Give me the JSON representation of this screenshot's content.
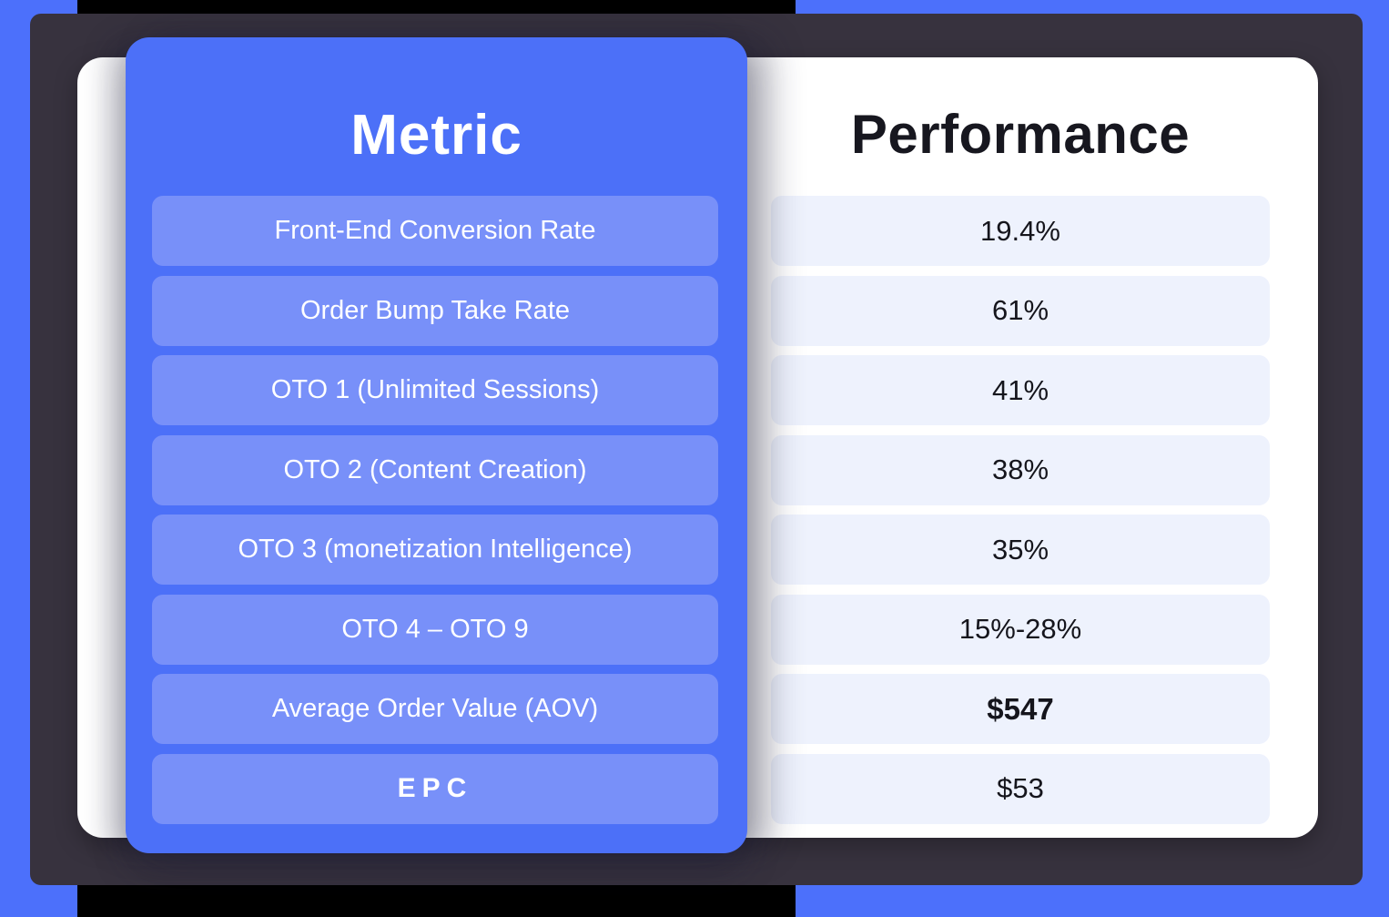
{
  "colors": {
    "background_blue": "#4C70FB",
    "panel_blue": "#4C70F8",
    "pill_blue": "#7890F9",
    "value_row_lavender": "#EEF2FD",
    "frame_charcoal": "#37323E",
    "bar_black": "#000000",
    "heading_dark": "#17171F",
    "text_white": "#FFFFFF"
  },
  "table": {
    "metric_header": "Metric",
    "performance_header": "Performance",
    "rows": [
      {
        "metric": "Front-End Conversion Rate",
        "value": "19.4%"
      },
      {
        "metric": "Order Bump Take Rate",
        "value": "61%"
      },
      {
        "metric": "OTO 1 (Unlimited Sessions)",
        "value": "41%"
      },
      {
        "metric": "OTO 2 (Content Creation)",
        "value": "38%"
      },
      {
        "metric": "OTO 3 (monetization Intelligence)",
        "value": "35%"
      },
      {
        "metric": "OTO 4 – OTO 9",
        "value": "15%-28%"
      },
      {
        "metric": "Average Order Value (AOV)",
        "value": "$547"
      },
      {
        "metric": "EPC",
        "value": "$53"
      }
    ]
  },
  "chart_data": {
    "type": "table",
    "title": "",
    "columns": [
      "Metric",
      "Performance"
    ],
    "rows": [
      [
        "Front-End Conversion Rate",
        "19.4%"
      ],
      [
        "Order Bump Take Rate",
        "61%"
      ],
      [
        "OTO 1 (Unlimited Sessions)",
        "41%"
      ],
      [
        "OTO 2 (Content Creation)",
        "38%"
      ],
      [
        "OTO 3 (monetization Intelligence)",
        "35%"
      ],
      [
        "OTO 4 – OTO 9",
        "15%-28%"
      ],
      [
        "Average Order Value (AOV)",
        "$547"
      ],
      [
        "EPC",
        "$53"
      ]
    ]
  }
}
